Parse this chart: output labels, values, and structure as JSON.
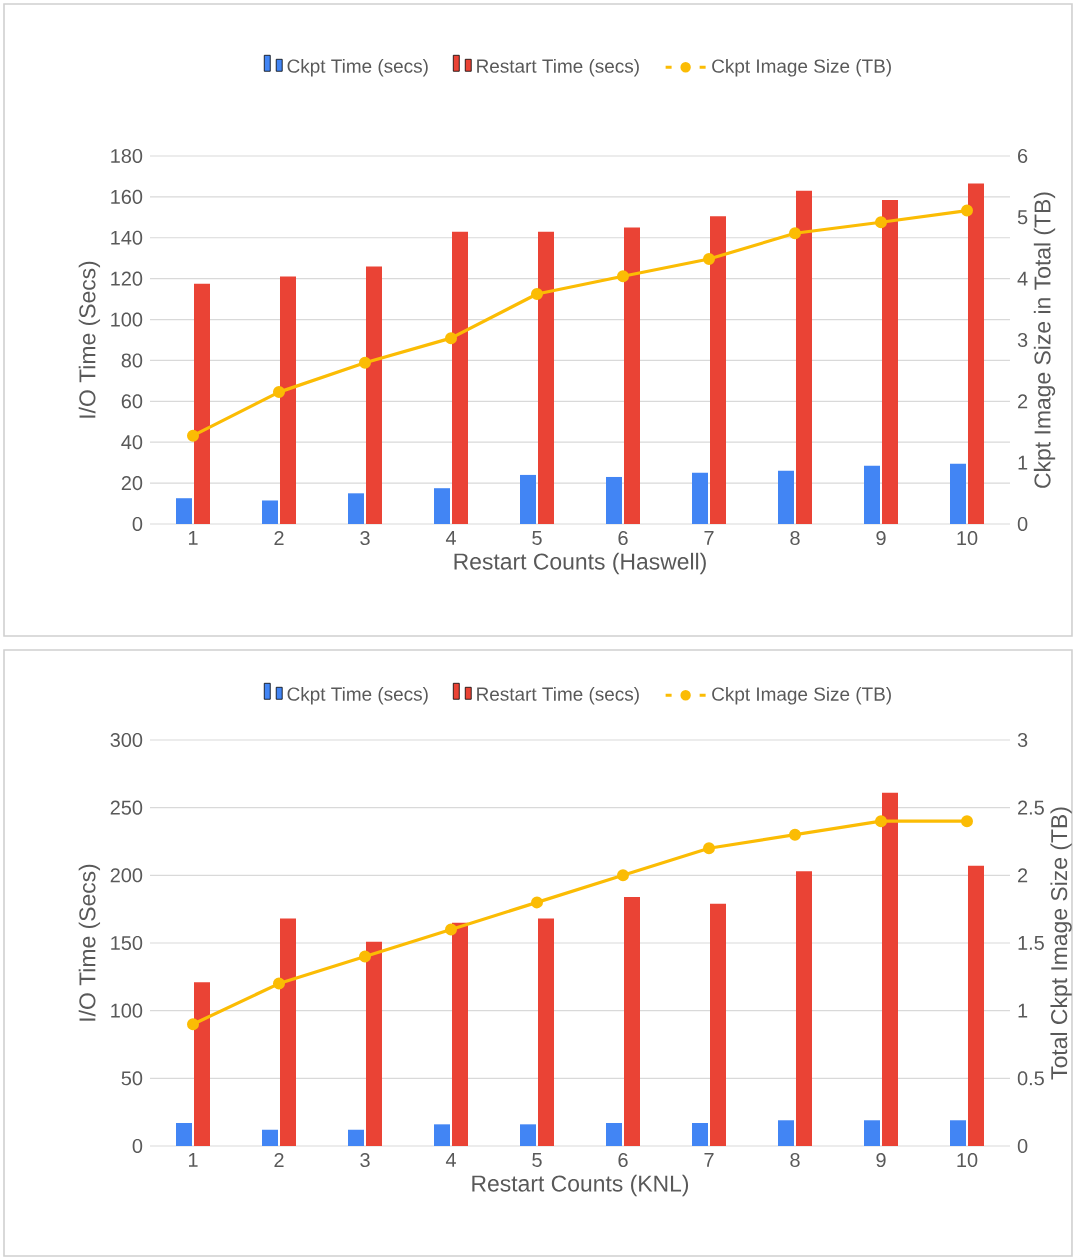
{
  "chart_data": [
    {
      "type": "bar",
      "categories": [
        "1",
        "2",
        "3",
        "4",
        "5",
        "6",
        "7",
        "8",
        "9",
        "10"
      ],
      "xlabel": "Restart Counts (Haswell)",
      "ylabel": "I/O Time (Secs)",
      "y2label": "Ckpt Image Size in Total (TB)",
      "series": [
        {
          "name": "Ckpt Time (secs)",
          "color": "#4285f4",
          "values": [
            12.6,
            11.5,
            15,
            17.5,
            24,
            23,
            25,
            26,
            28.5,
            29.5
          ]
        },
        {
          "name": "Restart Time (secs)",
          "color": "#ea4335",
          "values": [
            117.5,
            121,
            126,
            143,
            143,
            145,
            150.5,
            163,
            158.5,
            166.5
          ]
        },
        {
          "name": "Ckpt Image Size (TB)",
          "color": "#fbbc04",
          "type": "line",
          "axis": "y2",
          "values": [
            1.44,
            2.15,
            2.63,
            3.03,
            3.75,
            4.04,
            4.32,
            4.74,
            4.92,
            5.11
          ]
        }
      ],
      "ylim": [
        0,
        180
      ],
      "yticks": [
        0,
        20,
        40,
        60,
        80,
        100,
        120,
        140,
        160,
        180
      ],
      "y2lim": [
        0,
        6
      ],
      "y2ticks": [
        0,
        1,
        2,
        3,
        4,
        5,
        6
      ],
      "grid": "y",
      "legend": "top",
      "marker": "circle"
    },
    {
      "type": "bar",
      "categories": [
        "1",
        "2",
        "3",
        "4",
        "5",
        "6",
        "7",
        "8",
        "9",
        "10"
      ],
      "xlabel": "Restart Counts (KNL)",
      "ylabel": "I/O Time (Secs)",
      "y2label": "Total Ckpt Image Size (TB)",
      "series": [
        {
          "name": "Ckpt Time (secs)",
          "color": "#4285f4",
          "values": [
            17,
            12,
            12,
            16,
            16,
            17,
            17,
            19,
            19,
            19
          ]
        },
        {
          "name": "Restart Time (secs)",
          "color": "#ea4335",
          "values": [
            121,
            168,
            151,
            165,
            168,
            184,
            179,
            203,
            261,
            207
          ]
        },
        {
          "name": "Ckpt Image Size (TB)",
          "color": "#fbbc04",
          "type": "line",
          "axis": "y2",
          "values": [
            0.9,
            1.2,
            1.4,
            1.6,
            1.8,
            2.0,
            2.2,
            2.3,
            2.4,
            2.4
          ]
        }
      ],
      "ylim": [
        0,
        300
      ],
      "yticks": [
        0,
        50,
        100,
        150,
        200,
        250,
        300
      ],
      "y2lim": [
        0,
        3
      ],
      "y2ticks": [
        0,
        0.5,
        1,
        1.5,
        2,
        2.5,
        3
      ],
      "grid": "y",
      "legend": "top",
      "marker": "circle"
    }
  ]
}
